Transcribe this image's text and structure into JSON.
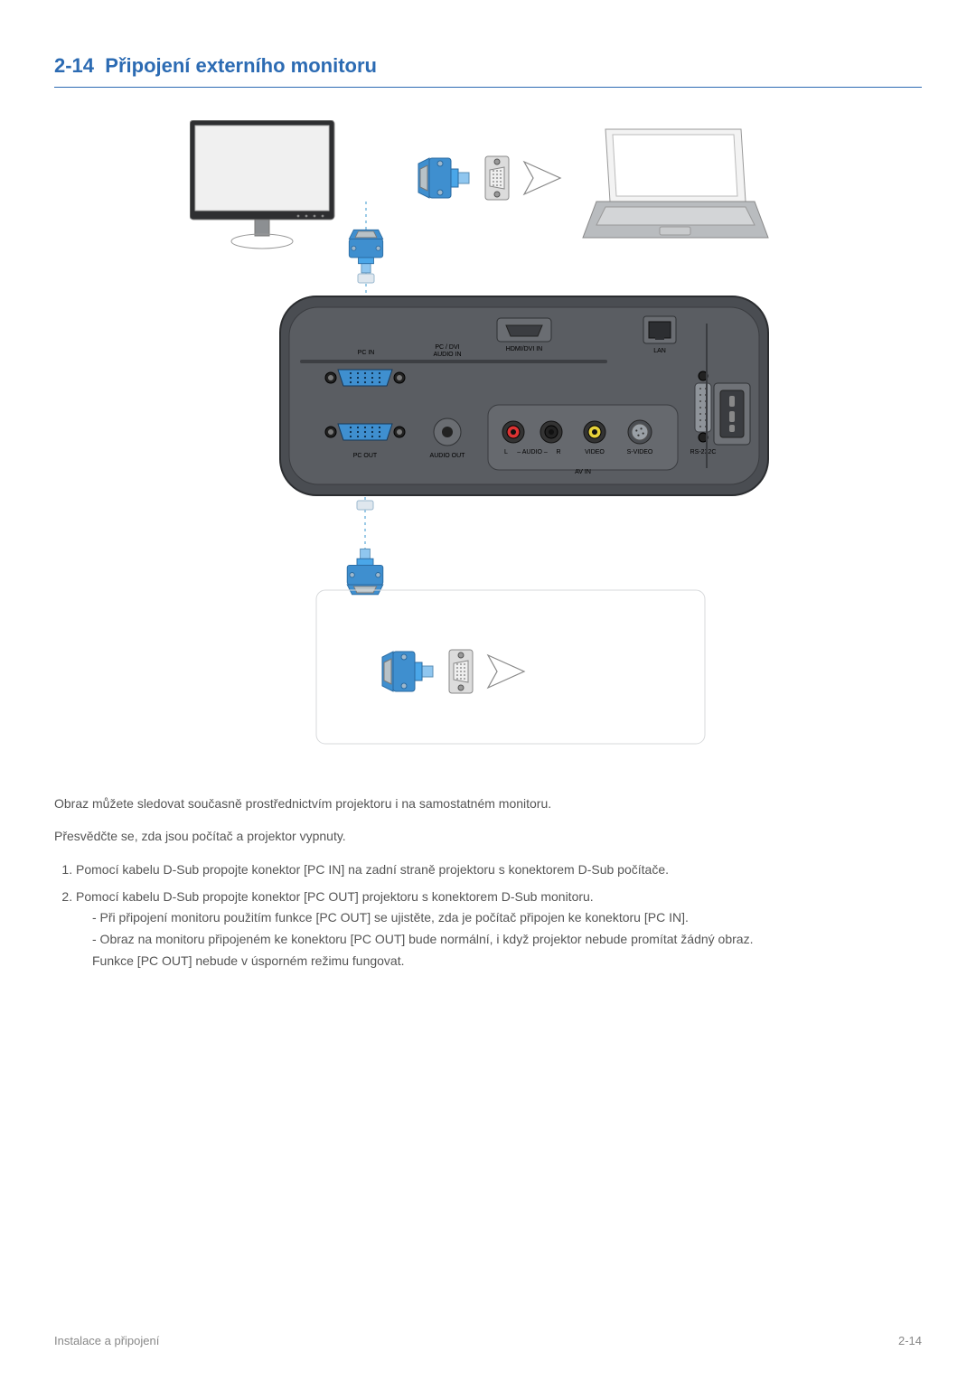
{
  "section": {
    "number": "2-14",
    "title": "Připojení externího monitoru"
  },
  "footer": {
    "left": "Instalace a připojení",
    "right": "2-14"
  },
  "intro": [
    "Obraz můžete sledovat současně prostřednictvím projektoru i na samostatném monitoru.",
    "Přesvědčte se, zda jsou počítač a projektor vypnuty."
  ],
  "steps": [
    {
      "n": "1.",
      "text": "Pomocí kabelu D-Sub propojte konektor [PC IN] na zadní straně projektoru s konektorem D-Sub počítače."
    },
    {
      "n": "2.",
      "text": "Pomocí kabelu D-Sub propojte konektor [PC OUT] projektoru s konektorem D-Sub monitoru.",
      "subs": [
        "- Při připojení monitoru použitím funkce [PC OUT] se ujistěte, zda je počítač připojen ke konektoru [PC IN].",
        "- Obraz na monitoru připojeném ke konektoru [PC OUT] bude normální, i když projektor nebude promítat žádný obraz.",
        "Funkce [PC OUT] nebude v úsporném režimu fungovat."
      ]
    }
  ],
  "diagram": {
    "colors": {
      "cable": "#4aa6e8",
      "cable_light": "#8fc6ef",
      "dotted": "#9ccbe7",
      "panel_bg": "#4a4d52",
      "panel_bg_inner": "#5a5d62",
      "panel_border": "#2b2d30",
      "vga_blue": "#3f8fcf",
      "vga_inner": "#b8c2c7",
      "screw_ring": "#222",
      "audio_red": "#d33",
      "audio_white": "#eee",
      "audio_yellow": "#e8d23a",
      "power_grey": "#666",
      "laptop_grey": "#b9bcbf",
      "monitor_grey": "#b9bcbf",
      "monitor_screen": "#f0f0f0",
      "arrow_fill": "#ffffff",
      "arrow_stroke": "#888"
    },
    "port_labels": {
      "pc_in": "PC IN",
      "pc_dvi_audio": "PC / DVI\nAUDIO IN",
      "hdmi": "HDMI/DVI IN",
      "lan": "LAN",
      "pc_out": "PC OUT",
      "audio_out": "AUDIO OUT",
      "audio_l": "L",
      "audio": "AUDIO",
      "audio_r": "R",
      "video": "VIDEO",
      "svideo": "S-VIDEO",
      "rs232": "RS-232C",
      "av_in": "AV IN"
    }
  }
}
